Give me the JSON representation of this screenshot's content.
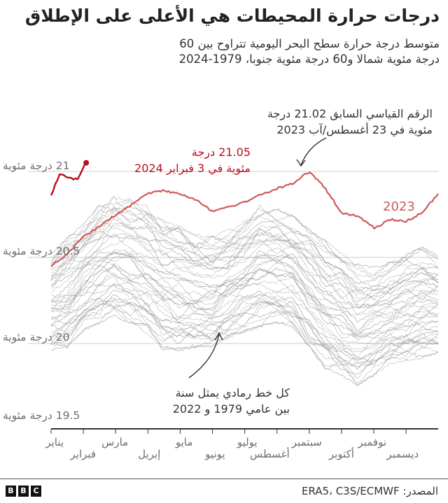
{
  "header": {
    "title": "درجات حرارة المحيطات هي الأعلى على الإطلاق",
    "subtitle_line1": "متوسط درجة حرارة سطح البحر اليومية تتراوح بين 60",
    "subtitle_line2": "درجة مئوية شمالا و60 درجة مئوية جنوبا، 1979-2024"
  },
  "annotations": {
    "record_2024_line1": "21.05 درجة",
    "record_2024_line2": "مئوية في 3 فبراير 2024",
    "prev_record_line1": "الرقم القياسي السابق 21.02 درجة",
    "prev_record_line2": "مئوية في 23 أغسطس/آب 2023",
    "grey_lines_line1": "كل خط رمادي يمثل سنة",
    "grey_lines_line2": "بين عامي 1979 و 2022",
    "label_2023": "2023"
  },
  "footer": {
    "source": "المصدر: ERA5، C3S/ECMWF",
    "logo": [
      "B",
      "B",
      "C"
    ]
  },
  "colors": {
    "line_2024": "#b80e1c",
    "line_2023": "#d0595d",
    "grey_lines": "#9a9a9a",
    "gridline": "#cfcfcf",
    "axis": "#333333"
  },
  "chart_data": {
    "type": "line",
    "title": "درجات حرارة المحيطات هي الأعلى على الإطلاق",
    "xlabel": "",
    "ylabel": "درجة مئوية",
    "ylim": [
      19.5,
      21.1
    ],
    "grid": "horizontal",
    "y_ticks": [
      {
        "value": 21,
        "label": "21 درجة مئوية"
      },
      {
        "value": 20.5,
        "label": "20.5 درجة مئوية"
      },
      {
        "value": 20,
        "label": "20 درجة مئوية"
      },
      {
        "value": 19.5,
        "label": "19.5 درجة مئوية"
      }
    ],
    "x_ticks": [
      "يناير",
      "فبراير",
      "مارس",
      "إبريل",
      "مايو",
      "يونيو",
      "يوليو",
      "أغسطس",
      "سبتمبر",
      "أكتوبر",
      "نوفمبر",
      "ديسمبر"
    ],
    "x_day_of_year": [
      1,
      16,
      32,
      46,
      60,
      75,
      91,
      106,
      121,
      136,
      152,
      167,
      182,
      197,
      213,
      228,
      244,
      259,
      274,
      289,
      305,
      320,
      335,
      350,
      365
    ],
    "series": [
      {
        "name": "2023",
        "values": [
          20.45,
          20.52,
          20.62,
          20.68,
          20.74,
          20.8,
          20.87,
          20.89,
          20.87,
          20.84,
          20.77,
          20.79,
          20.82,
          20.86,
          20.9,
          20.93,
          21.0,
          20.9,
          20.76,
          20.74,
          20.67,
          20.72,
          20.71,
          20.76,
          20.87
        ]
      },
      {
        "name": "2024",
        "values": [
          20.86,
          20.99,
          20.96,
          20.95,
          21.05
        ]
      },
      {
        "name": "1979-2022 (range envelope, each grey line one year)",
        "values_high": [
          20.52,
          20.62,
          20.7,
          20.8,
          20.86,
          20.84,
          20.8,
          20.72,
          20.68,
          20.63,
          20.62,
          20.66,
          20.72,
          20.8,
          20.78,
          20.74,
          20.66,
          20.6,
          20.52,
          20.48,
          20.44,
          20.47,
          20.52,
          20.56,
          20.51
        ],
        "values_low": [
          19.96,
          19.98,
          20.08,
          20.12,
          20.16,
          20.12,
          20.06,
          19.97,
          19.96,
          19.98,
          19.98,
          20.02,
          20.07,
          20.1,
          20.12,
          20.08,
          19.98,
          19.85,
          19.82,
          19.76,
          19.82,
          19.88,
          19.9,
          19.92,
          19.95
        ]
      }
    ],
    "annotations": [
      {
        "text": "21.05 درجة مئوية في 3 فبراير 2024",
        "x": "2024-02-03",
        "y": 21.05
      },
      {
        "text": "الرقم القياسي السابق 21.02 درجة مئوية في 23 أغسطس/آب 2023",
        "x": "2023-08-23",
        "y": 21.02
      },
      {
        "text": "كل خط رمادي يمثل سنة بين عامي 1979 و 2022"
      }
    ],
    "source": "ERA5، C3S/ECMWF"
  }
}
